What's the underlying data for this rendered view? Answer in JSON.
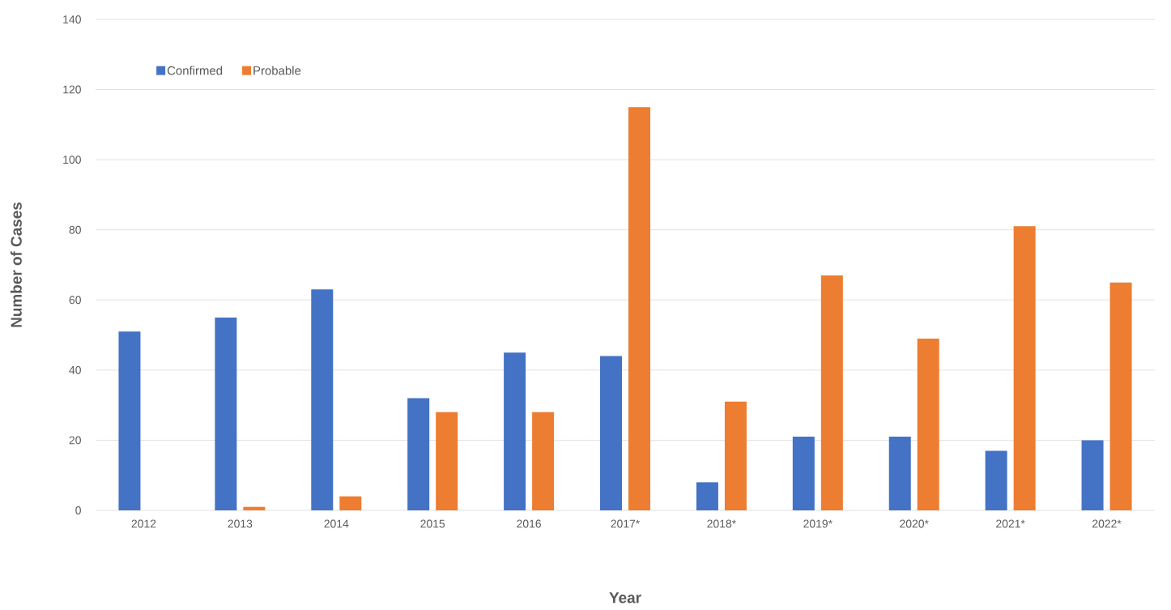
{
  "chart_data": {
    "type": "bar",
    "xlabel": "Year",
    "ylabel": "Number of Cases",
    "categories": [
      "2012",
      "2013",
      "2014",
      "2015",
      "2016",
      "2017*",
      "2018*",
      "2019*",
      "2020*",
      "2021*",
      "2022*"
    ],
    "series": [
      {
        "name": "Confirmed",
        "color": "#4472c4",
        "values": [
          51,
          55,
          63,
          32,
          45,
          44,
          8,
          21,
          21,
          17,
          20
        ]
      },
      {
        "name": "Probable",
        "color": "#ed7d31",
        "values": [
          0,
          1,
          4,
          28,
          28,
          115,
          31,
          67,
          49,
          81,
          65
        ]
      }
    ],
    "ylim": [
      0,
      140
    ],
    "yticks": [
      0,
      20,
      40,
      60,
      80,
      100,
      120,
      140
    ],
    "grid": "y",
    "legend": "top left"
  }
}
